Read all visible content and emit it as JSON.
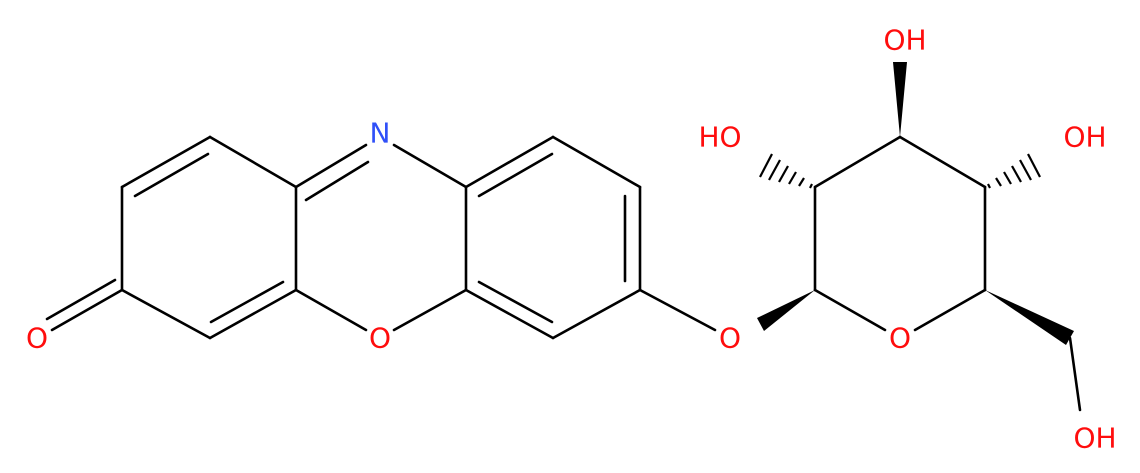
{
  "atoms": [
    {
      "label": "O"
    },
    {
      "label": "N"
    },
    {
      "label": "O"
    },
    {
      "label": "O"
    },
    {
      "label": "O"
    },
    {
      "label": "HO"
    },
    {
      "label": "OH"
    },
    {
      "label": "OH"
    },
    {
      "label": "OH"
    }
  ]
}
